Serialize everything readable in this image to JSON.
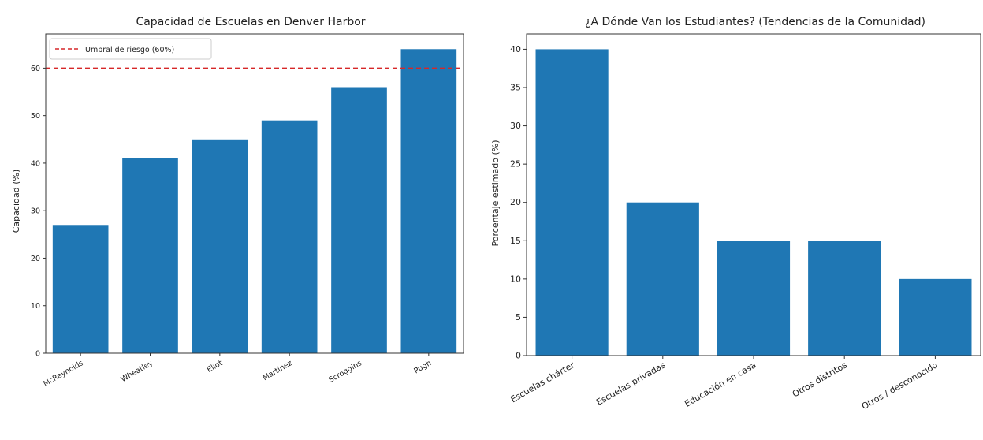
{
  "colors": {
    "bar": "#1f77b4",
    "threshold": "#d62728",
    "axis": "#333333"
  },
  "chart_data": [
    {
      "type": "bar",
      "title": "Capacidad de Escuelas en Denver Harbor",
      "xlabel": "",
      "ylabel": "Capacidad (%)",
      "categories": [
        "McReynolds",
        "Wheatley",
        "Eliot",
        "Martinez",
        "Scroggins",
        "Pugh"
      ],
      "values": [
        27,
        41,
        45,
        49,
        56,
        64
      ],
      "ylim": [
        0,
        67.2
      ],
      "yticks": [
        0,
        10,
        20,
        30,
        40,
        50,
        60
      ],
      "grid": false,
      "reference_line": {
        "value": 60,
        "label": "Umbral de riesgo (60%)",
        "style": "dashed"
      },
      "legend_position": "top-left"
    },
    {
      "type": "bar",
      "title": "¿A Dónde Van los Estudiantes? (Tendencias de la Comunidad)",
      "xlabel": "",
      "ylabel": "Porcentaje estimado (%)",
      "categories": [
        "Escuelas chárter",
        "Escuelas privadas",
        "Educación en casa",
        "Otros distritos",
        "Otros / desconocido"
      ],
      "values": [
        40,
        20,
        15,
        15,
        10
      ],
      "ylim": [
        0,
        42
      ],
      "yticks": [
        0,
        5,
        10,
        15,
        20,
        25,
        30,
        35,
        40
      ],
      "grid": false
    }
  ]
}
